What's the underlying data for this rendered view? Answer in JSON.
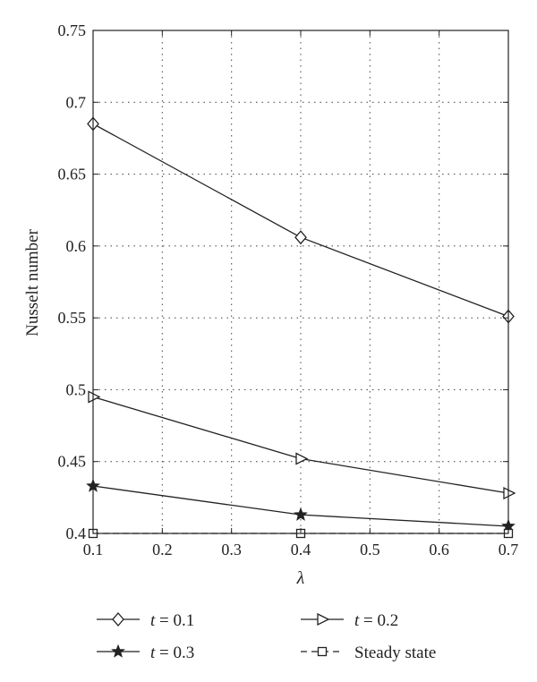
{
  "chart_data": {
    "type": "line",
    "title": "",
    "xlabel": "λ",
    "ylabel": "Nusselt number",
    "x": [
      0.1,
      0.4,
      0.7
    ],
    "xlim": [
      0.1,
      0.7
    ],
    "ylim": [
      0.4,
      0.75
    ],
    "xticks": [
      0.1,
      0.2,
      0.3,
      0.4,
      0.5,
      0.6,
      0.7
    ],
    "yticks": [
      0.4,
      0.45,
      0.5,
      0.55,
      0.6,
      0.65,
      0.7,
      0.75
    ],
    "xtick_labels": [
      "0.1",
      "0.2",
      "0.3",
      "0.4",
      "0.5",
      "0.6",
      "0.7"
    ],
    "ytick_labels": [
      "0.4",
      "0.45",
      "0.5",
      "0.55",
      "0.6",
      "0.65",
      "0.7",
      "0.75"
    ],
    "grid": true,
    "legend_position": "bottom",
    "series": [
      {
        "name": "t = 0.1",
        "legend_var": "t",
        "legend_val": " = 0.1",
        "marker": "diamond",
        "line": "solid",
        "values": [
          0.685,
          0.606,
          0.551
        ]
      },
      {
        "name": "t = 0.2",
        "legend_var": "t",
        "legend_val": " = 0.2",
        "marker": "triangle-right",
        "line": "solid",
        "values": [
          0.495,
          0.452,
          0.428
        ]
      },
      {
        "name": "t = 0.3",
        "legend_var": "t",
        "legend_val": " = 0.3",
        "marker": "star",
        "line": "solid",
        "values": [
          0.433,
          0.413,
          0.405
        ]
      },
      {
        "name": "Steady state",
        "legend_var": "",
        "legend_val": "Steady state",
        "marker": "square",
        "line": "dashed",
        "values": [
          0.4,
          0.4,
          0.4
        ]
      }
    ],
    "colors": {
      "line": "#222222",
      "grid": "#555555",
      "axis": "#222222"
    }
  }
}
